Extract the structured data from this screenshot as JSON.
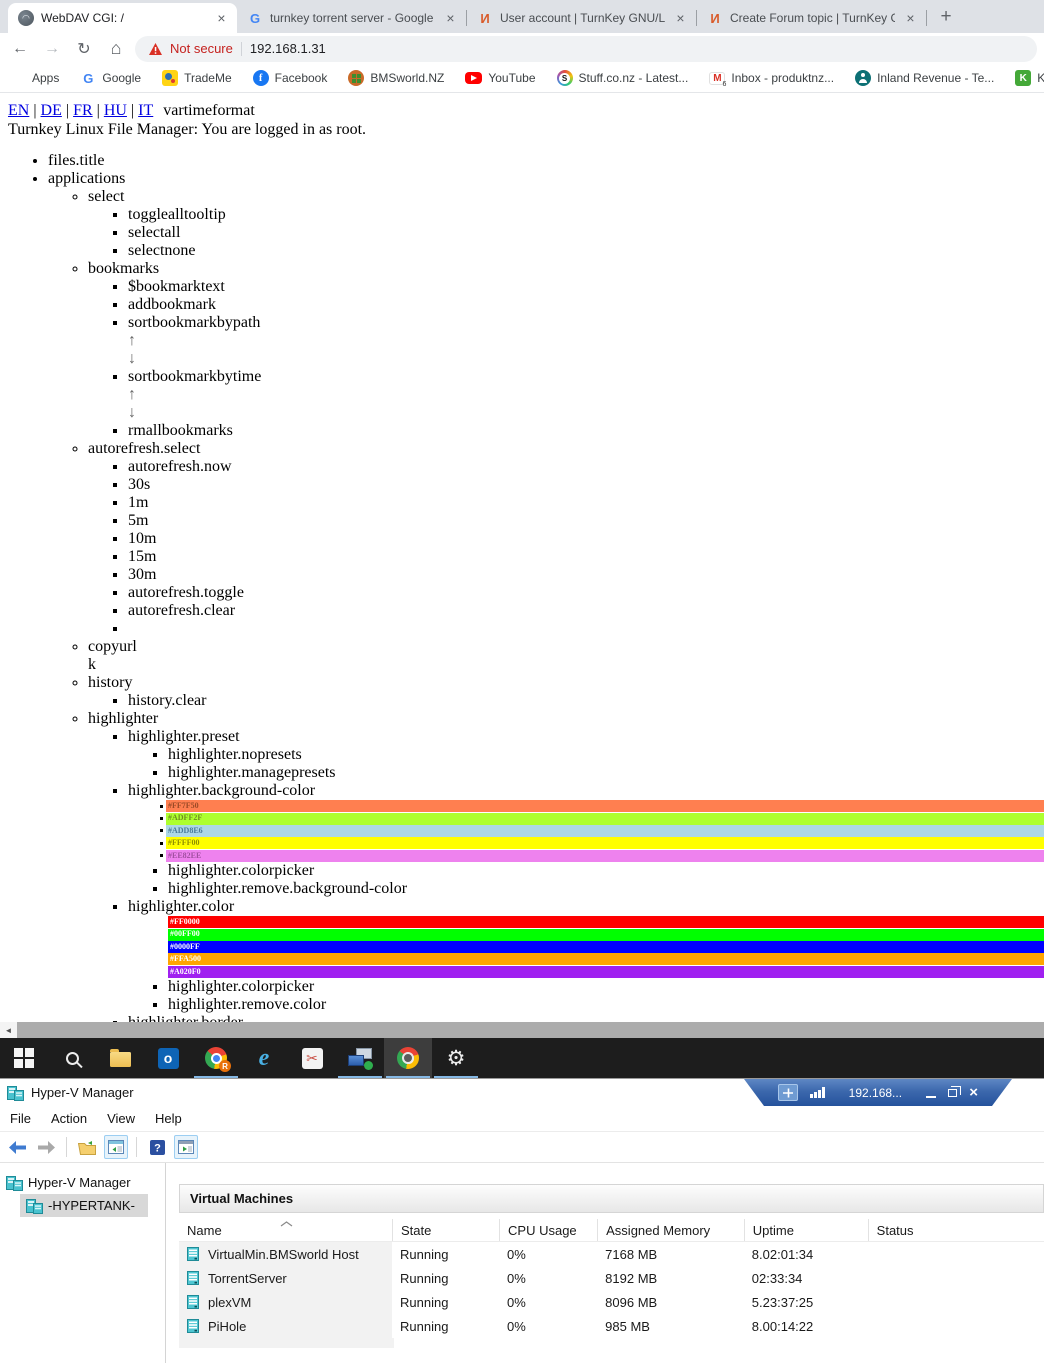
{
  "browser": {
    "tabs": [
      {
        "title": "WebDAV CGI: /",
        "favicon": "webdav",
        "active": true
      },
      {
        "title": "turnkey torrent server - Google S",
        "favicon": "google",
        "active": false
      },
      {
        "title": "User account | TurnKey GNU/Linu",
        "favicon": "turnkey",
        "active": false
      },
      {
        "title": "Create Forum topic | TurnKey GN",
        "favicon": "turnkey",
        "active": false
      }
    ],
    "new_tab_glyph": "+",
    "close_glyph": "×",
    "nav": {
      "back": "←",
      "forward": "→",
      "reload": "↻",
      "home": "⌂"
    },
    "address": {
      "security_label": "Not secure",
      "url": "192.168.1.31"
    },
    "favicon_glyphs": {
      "google": "G",
      "turnkey": "И",
      "webdav": ""
    },
    "scrollbar": {
      "left_arrow": "◄"
    },
    "bookmarks": [
      {
        "label": "Apps",
        "icon": "apps-grid"
      },
      {
        "label": "Google",
        "icon": "google",
        "glyph": "G"
      },
      {
        "label": "TradeMe",
        "icon": "trademe"
      },
      {
        "label": "Facebook",
        "icon": "facebook",
        "glyph": "f"
      },
      {
        "label": "BMSworld.NZ",
        "icon": "bmsworld"
      },
      {
        "label": "YouTube",
        "icon": "youtube"
      },
      {
        "label": "Stuff.co.nz - Latest...",
        "icon": "stuff",
        "glyph": "S"
      },
      {
        "label": "Inbox - produktnz...",
        "icon": "gmail",
        "glyph": "M",
        "badge": "6"
      },
      {
        "label": "Inland Revenue - Te...",
        "icon": "inland-revenue"
      },
      {
        "label": "Kiwib",
        "icon": "kiwibank",
        "glyph": "K"
      }
    ]
  },
  "page": {
    "languages": [
      "EN",
      "DE",
      "FR",
      "HU",
      "IT"
    ],
    "language_separator": "|",
    "language_suffix": "vartimeformat",
    "subtitle": "Turnkey Linux File Manager: You are logged in as root.",
    "sort_arrows": {
      "up": "↑",
      "down": "↓"
    },
    "bg_swatches": [
      {
        "hex": "#FF7F50",
        "color": "#FF7F50",
        "label_color": "#9a4a26"
      },
      {
        "hex": "#ADFF2F",
        "color": "#ADFF2F",
        "label_color": "#6f8f1f"
      },
      {
        "hex": "#ADD8E6",
        "color": "#ADD8E6",
        "label_color": "#4a7a99"
      },
      {
        "hex": "#FFFF00",
        "color": "#FFFF00",
        "label_color": "#8f8f00"
      },
      {
        "hex": "#EE82EE",
        "color": "#EE82EE",
        "label_color": "#a14fa1"
      }
    ],
    "fg_swatches": [
      {
        "hex": "#FF0000",
        "color": "#FF0000"
      },
      {
        "hex": "#00FF00",
        "color": "#00FF00"
      },
      {
        "hex": "#0000FF",
        "color": "#0000FF"
      },
      {
        "hex": "#FFA500",
        "color": "#FFA500"
      },
      {
        "hex": "#A020F0",
        "color": "#A020F0"
      }
    ],
    "tree": [
      {
        "label": "files.title"
      },
      {
        "label": "applications",
        "children": [
          {
            "label": "select",
            "children": [
              {
                "label": "togglealltooltip"
              },
              {
                "label": "selectall"
              },
              {
                "label": "selectnone"
              }
            ]
          },
          {
            "label": "bookmarks",
            "children": [
              {
                "label": "$bookmarktext"
              },
              {
                "label": "addbookmark"
              },
              {
                "label": "sortbookmarkbypath",
                "arrows": true
              },
              {
                "label": "sortbookmarkbytime",
                "arrows": true
              },
              {
                "label": "rmallbookmarks"
              }
            ]
          },
          {
            "label": "autorefresh.select",
            "children": [
              {
                "label": "autorefresh.now"
              },
              {
                "label": "30s"
              },
              {
                "label": "1m"
              },
              {
                "label": "5m"
              },
              {
                "label": "10m"
              },
              {
                "label": "15m"
              },
              {
                "label": "30m"
              },
              {
                "label": "autorefresh.toggle"
              },
              {
                "label": "autorefresh.clear"
              },
              {
                "label": ""
              }
            ]
          },
          {
            "label": "copyurl",
            "sub": "k"
          },
          {
            "label": "history",
            "children": [
              {
                "label": "history.clear"
              }
            ]
          },
          {
            "label": "highlighter",
            "children": [
              {
                "label": "highlighter.preset",
                "children": [
                  {
                    "label": "highlighter.nopresets"
                  },
                  {
                    "label": "highlighter.managepresets"
                  }
                ]
              },
              {
                "label": "highlighter.background-color",
                "swatches": "bg",
                "children": [
                  {
                    "label": "highlighter.colorpicker"
                  },
                  {
                    "label": "highlighter.remove.background-color"
                  }
                ]
              },
              {
                "label": "highlighter.color",
                "swatches": "fg",
                "children": [
                  {
                    "label": "highlighter.colorpicker"
                  },
                  {
                    "label": "highlighter.remove.color"
                  }
                ]
              },
              {
                "label": "highlighter.border"
              }
            ]
          }
        ]
      }
    ]
  },
  "taskbar": {
    "items": [
      {
        "name": "start"
      },
      {
        "name": "search"
      },
      {
        "name": "file-explorer"
      },
      {
        "name": "outlook",
        "glyph": "o"
      },
      {
        "name": "chrome-remote-desktop",
        "glyph": "R",
        "running": true
      },
      {
        "name": "internet-explorer",
        "glyph": "e"
      },
      {
        "name": "snipping-tool",
        "glyph": "✂"
      },
      {
        "name": "remote-desktop-connection",
        "running": true
      },
      {
        "name": "chrome",
        "active": true,
        "running": true
      },
      {
        "name": "settings",
        "glyph": "⚙",
        "running": true
      }
    ]
  },
  "rdp_bar": {
    "host": "192.168...",
    "close_glyph": "×"
  },
  "hyperv": {
    "title": "Hyper-V Manager",
    "menus": [
      "File",
      "Action",
      "View",
      "Help"
    ],
    "tree": [
      {
        "label": "Hyper-V Manager",
        "selected": false
      },
      {
        "label": "-HYPERTANK-",
        "selected": true
      }
    ],
    "panel_title": "Virtual Machines",
    "table": {
      "columns": [
        "Name",
        "State",
        "CPU Usage",
        "Assigned Memory",
        "Uptime",
        "Status"
      ],
      "rows": [
        {
          "name": "VirtualMin.BMSworld Host",
          "state": "Running",
          "cpu": "0%",
          "memory": "7168 MB",
          "uptime": "8.02:01:34",
          "status": ""
        },
        {
          "name": "TorrentServer",
          "state": "Running",
          "cpu": "0%",
          "memory": "8192 MB",
          "uptime": "02:33:34",
          "status": ""
        },
        {
          "name": "plexVM",
          "state": "Running",
          "cpu": "0%",
          "memory": "8096 MB",
          "uptime": "5.23:37:25",
          "status": ""
        },
        {
          "name": "PiHole",
          "state": "Running",
          "cpu": "0%",
          "memory": "985 MB",
          "uptime": "8.00:14:22",
          "status": ""
        }
      ]
    }
  }
}
